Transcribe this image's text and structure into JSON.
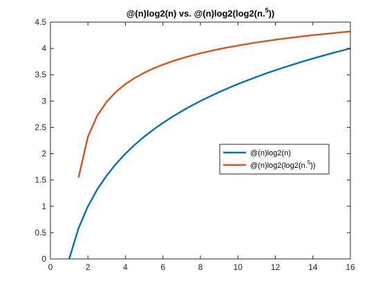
{
  "chart_data": {
    "type": "line",
    "title_main": "@(n)log2(n) vs. @(n)log2(log2(n.",
    "title_sup": "5",
    "title_end": "))",
    "xlabel": "",
    "ylabel": "",
    "xlim": [
      0,
      16
    ],
    "ylim": [
      0,
      4.5
    ],
    "xticks": [
      0,
      2,
      4,
      6,
      8,
      10,
      12,
      14,
      16
    ],
    "yticks": [
      0,
      0.5,
      1,
      1.5,
      2,
      2.5,
      3,
      3.5,
      4,
      4.5
    ],
    "xtick_labels": [
      "0",
      "2",
      "4",
      "6",
      "8",
      "10",
      "12",
      "14",
      "16"
    ],
    "ytick_labels": [
      "0",
      "0.5",
      "1",
      "1.5",
      "2",
      "2.5",
      "3",
      "3.5",
      "4",
      "4.5"
    ],
    "grid": false,
    "legend_position": "center-right",
    "series": [
      {
        "name_main": "@(n)log2(n)",
        "name_sup": "",
        "name_end": "",
        "color": "#0072BD",
        "x": [
          1,
          1.5,
          2,
          2.5,
          3,
          3.5,
          4,
          4.5,
          5,
          5.5,
          6,
          6.5,
          7,
          7.5,
          8,
          8.5,
          9,
          9.5,
          10,
          10.5,
          11,
          11.5,
          12,
          12.5,
          13,
          13.5,
          14,
          14.5,
          15,
          15.5,
          16
        ],
        "y": [
          0,
          0.585,
          1,
          1.322,
          1.585,
          1.807,
          2,
          2.17,
          2.322,
          2.459,
          2.585,
          2.7,
          2.807,
          2.907,
          3,
          3.087,
          3.17,
          3.248,
          3.322,
          3.392,
          3.459,
          3.524,
          3.585,
          3.644,
          3.7,
          3.755,
          3.807,
          3.858,
          3.907,
          3.954,
          4
        ]
      },
      {
        "name_main": "@(n)log2(log2(n.",
        "name_sup": "5",
        "name_end": "))",
        "color": "#D95319",
        "x": [
          1.5,
          2,
          2.5,
          3,
          3.5,
          4,
          4.5,
          5,
          5.5,
          6,
          6.5,
          7,
          7.5,
          8,
          8.5,
          9,
          9.5,
          10,
          10.5,
          11,
          11.5,
          12,
          12.5,
          13,
          13.5,
          14,
          14.5,
          15,
          15.5,
          16
        ],
        "y": [
          1.548,
          2.322,
          2.725,
          2.987,
          3.175,
          3.322,
          3.439,
          3.537,
          3.62,
          3.692,
          3.755,
          3.811,
          3.862,
          3.907,
          3.949,
          3.987,
          4.022,
          4.054,
          4.084,
          4.113,
          4.139,
          4.164,
          4.188,
          4.21,
          4.231,
          4.251,
          4.27,
          4.288,
          4.306,
          4.322
        ]
      }
    ]
  }
}
